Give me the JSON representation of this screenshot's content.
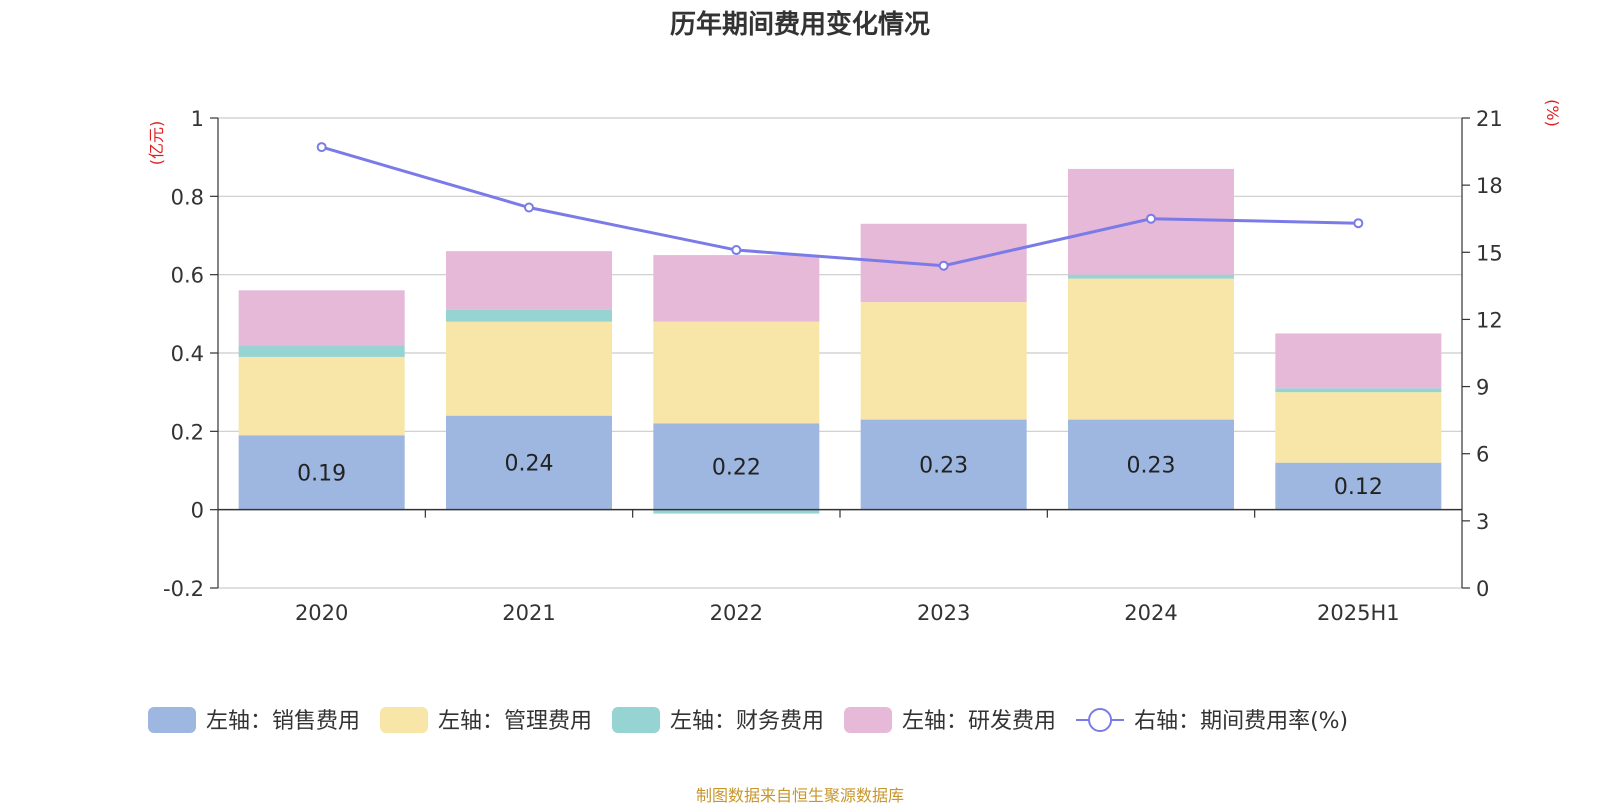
{
  "title": "历年期间费用变化情况",
  "source": "制图数据来自恒生聚源数据库",
  "colors": {
    "sales": "#9db7e1",
    "admin": "#f7e6a8",
    "finance": "#96d3d3",
    "rd": "#e6b9d9",
    "rate": "#7b7be8",
    "grid": "#cccccc",
    "axis": "#333333",
    "unit": "#e02020",
    "source": "#c8962d"
  },
  "chart_data": {
    "type": "bar",
    "stacked": true,
    "categories": [
      "2020",
      "2021",
      "2022",
      "2023",
      "2024",
      "2025H1"
    ],
    "left_axis": {
      "unit_label": "(亿元)",
      "ylim": [
        -0.2,
        1
      ],
      "ticks": [
        "-0.2",
        "0",
        "0.2",
        "0.4",
        "0.6",
        "0.8",
        "1"
      ]
    },
    "right_axis": {
      "unit_label": "(%)",
      "ylim": [
        0,
        21
      ],
      "ticks": [
        "0",
        "3",
        "6",
        "9",
        "12",
        "15",
        "18",
        "21"
      ]
    },
    "grid": true,
    "legend_position": "bottom",
    "series": [
      {
        "key": "sales",
        "name": "左轴：销售费用",
        "axis": "left",
        "type": "bar",
        "values": [
          0.19,
          0.24,
          0.22,
          0.23,
          0.23,
          0.12
        ],
        "data_labels": [
          "0.19",
          "0.24",
          "0.22",
          "0.23",
          "0.23",
          "0.12"
        ]
      },
      {
        "key": "admin",
        "name": "左轴：管理费用",
        "axis": "left",
        "type": "bar",
        "values": [
          0.2,
          0.24,
          0.26,
          0.3,
          0.36,
          0.18
        ]
      },
      {
        "key": "finance",
        "name": "左轴：财务费用",
        "axis": "left",
        "type": "bar",
        "values": [
          0.03,
          0.03,
          -0.01,
          0.0,
          0.01,
          0.01
        ]
      },
      {
        "key": "rd",
        "name": "左轴：研发费用",
        "axis": "left",
        "type": "bar",
        "values": [
          0.14,
          0.15,
          0.17,
          0.2,
          0.27,
          0.14
        ]
      },
      {
        "key": "rate",
        "name": "右轴：期间费用率(%)",
        "axis": "right",
        "type": "line",
        "values": [
          19.7,
          17.0,
          15.1,
          14.4,
          16.5,
          16.3
        ]
      }
    ]
  }
}
